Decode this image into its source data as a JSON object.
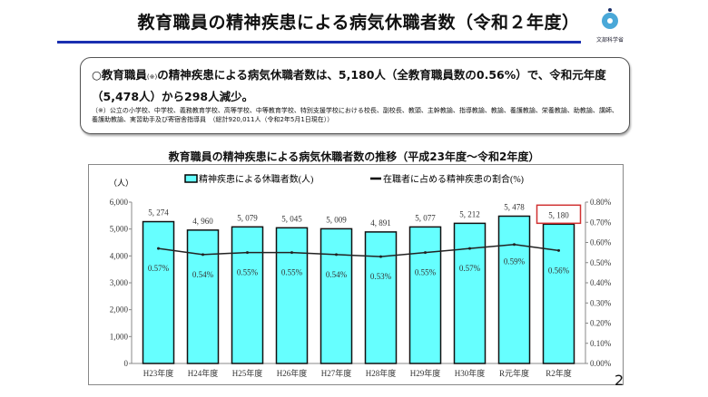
{
  "header": {
    "title": "教育職員の精神疾患による病気休職者数（令和２年度）",
    "logo_text": "文部科学省",
    "rule_color": "#1a2fb0"
  },
  "summary": {
    "prefix": "○教育職員",
    "mark": "(※)",
    "text": "の精神疾患による病気休職者数は、5,180人（全教育職員数の0.56%）で、令和元年度（5,478人）から298人減少。",
    "note": "（※）公立の小学校、中学校、義務教育学校、高等学校、中等教育学校、特別支援学校における校長、副校長、教頭、主幹教諭、指導教諭、教諭、養護教諭、栄養教諭、助教諭、講師、養護助教諭、実習助手及び寄宿舎指導員　（総計920,011人（令和2年5月1日現在））"
  },
  "page_number": "2",
  "chart_data": {
    "type": "bar",
    "title": "教育職員の精神疾患による病気休職者数の推移（平成23年度～令和2年度）",
    "categories": [
      "H23年度",
      "H24年度",
      "H25年度",
      "H26年度",
      "H27年度",
      "H28年度",
      "H29年度",
      "H30年度",
      "R元年度",
      "R2年度"
    ],
    "ylabel": "（人）",
    "ylim": [
      0,
      6000
    ],
    "yticks": [
      "0",
      "1,000",
      "2,000",
      "3,000",
      "4,000",
      "5,000",
      "6,000"
    ],
    "y2lim": [
      0,
      0.8
    ],
    "y2ticks": [
      "0.00%",
      "0.10%",
      "0.20%",
      "0.30%",
      "0.40%",
      "0.50%",
      "0.60%",
      "0.70%",
      "0.80%"
    ],
    "legend_position": "top",
    "highlight_index": 9,
    "highlight_color": "#d03030",
    "series": [
      {
        "name": "精神疾患による休職者数(人)",
        "type": "bar",
        "color": "#66ffff",
        "values": [
          5274,
          4960,
          5079,
          5045,
          5009,
          4891,
          5077,
          5212,
          5478,
          5180
        ],
        "labels": [
          "5, 274",
          "4, 960",
          "5, 079",
          "5, 045",
          "5, 009",
          "4, 891",
          "5, 077",
          "5, 212",
          "5, 478",
          "5, 180"
        ]
      },
      {
        "name": "在職者に占める精神疾患の割合(%)",
        "type": "line",
        "axis": "right",
        "color": "#222222",
        "values": [
          0.57,
          0.54,
          0.55,
          0.55,
          0.54,
          0.53,
          0.55,
          0.57,
          0.59,
          0.56
        ],
        "labels": [
          "0.57%",
          "0.54%",
          "0.55%",
          "0.55%",
          "0.54%",
          "0.53%",
          "0.55%",
          "0.57%",
          "0.59%",
          "0.56%"
        ]
      }
    ]
  }
}
